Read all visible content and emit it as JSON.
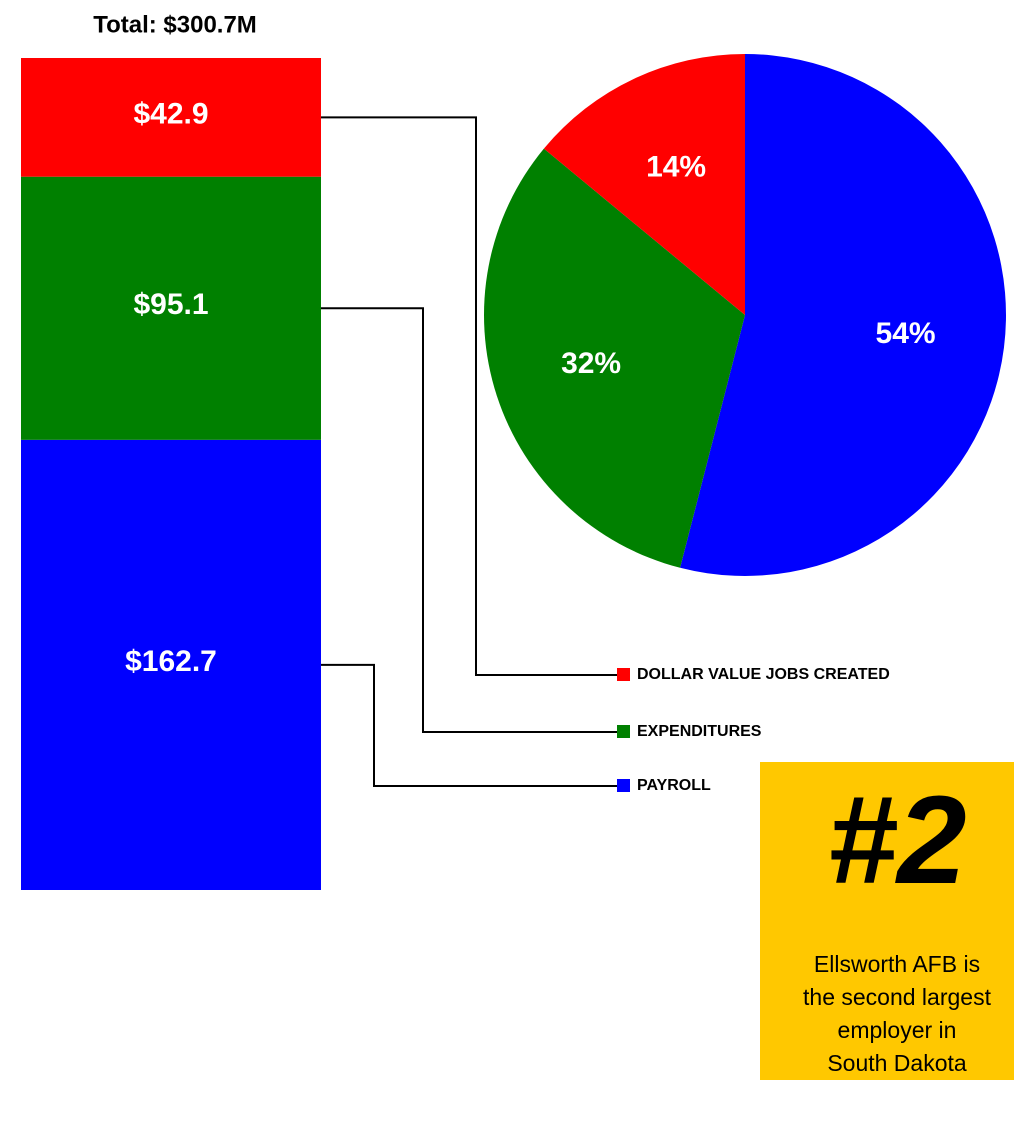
{
  "chart_data": [
    {
      "type": "stacked_bar",
      "title": "Total: $300.7M",
      "series": [
        {
          "name": "PAYROLL",
          "color": "#0000ff",
          "values": [
            162.7
          ],
          "value_labels": [
            "$162.7"
          ]
        },
        {
          "name": "EXPENDITURES",
          "color": "#008000",
          "values": [
            95.1
          ],
          "value_labels": [
            "$95.1"
          ]
        },
        {
          "name": "DOLLAR VALUE JOBS CREATED",
          "color": "#ff0000",
          "values": [
            42.9
          ],
          "value_labels": [
            "$42.9"
          ]
        }
      ]
    },
    {
      "type": "pie",
      "values": [
        54,
        32,
        14
      ],
      "value_labels": [
        "54%",
        "32%",
        "14%"
      ],
      "colors": [
        "#0000ff",
        "#008000",
        "#ff0000"
      ]
    }
  ],
  "annotation": {
    "title": "#2",
    "lines": [
      "Ellsworth AFB  is",
      "the second largest",
      "employer in",
      "South Dakota"
    ]
  }
}
